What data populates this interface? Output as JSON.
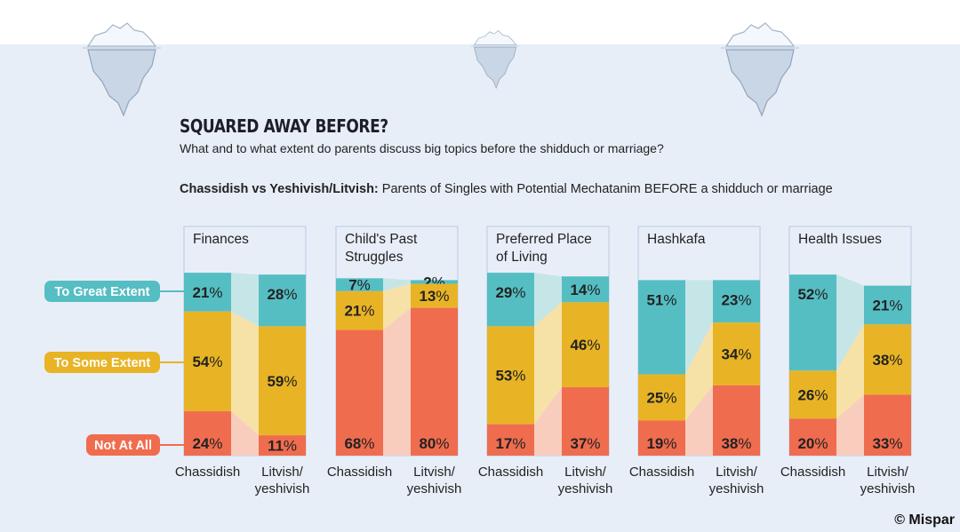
{
  "title": "SQUARED AWAY BEFORE?",
  "subtitle": "What and to what extent do parents discuss big topics before the shidduch or marriage?",
  "subhead_bold": "Chassidish vs Yeshivish/Litvish:",
  "subhead_rest": " Parents of Singles with Potential Mechatanim BEFORE a shidduch or marriage",
  "credit": "© Mispar",
  "colors": {
    "great": "#55bec3",
    "some": "#e8b425",
    "not": "#f06c4f",
    "great_light": "#c6e5e7",
    "some_light": "#f6e2a6",
    "not_light": "#f9cdbd",
    "background": "#e8eef8"
  },
  "decorations": [
    "iceberg-icon",
    "iceberg-icon",
    "iceberg-icon"
  ],
  "chart_data": {
    "type": "bar",
    "stacked": true,
    "unit": "%",
    "legend": [
      "To Great Extent",
      "To Some Extent",
      "Not At All"
    ],
    "legend_placement": "left",
    "groups": [
      "Chassidish",
      "Litvish/ yeshivish"
    ],
    "panels": [
      {
        "title": "Finances",
        "values": {
          "Chassidish": [
            21,
            54,
            24
          ],
          "Litvish/ yeshivish": [
            28,
            59,
            11
          ]
        }
      },
      {
        "title": "Child's Past Struggles",
        "values": {
          "Chassidish": [
            7,
            21,
            68
          ],
          "Litvish/ yeshivish": [
            2,
            13,
            80
          ]
        }
      },
      {
        "title": "Preferred Place of Living",
        "values": {
          "Chassidish": [
            29,
            53,
            17
          ],
          "Litvish/ yeshivish": [
            14,
            46,
            37
          ]
        }
      },
      {
        "title": "Hashkafa",
        "values": {
          "Chassidish": [
            51,
            25,
            19
          ],
          "Litvish/ yeshivish": [
            23,
            34,
            38
          ]
        }
      },
      {
        "title": "Health Issues",
        "values": {
          "Chassidish": [
            52,
            26,
            20
          ],
          "Litvish/ yeshivish": [
            21,
            38,
            33
          ]
        }
      }
    ]
  }
}
